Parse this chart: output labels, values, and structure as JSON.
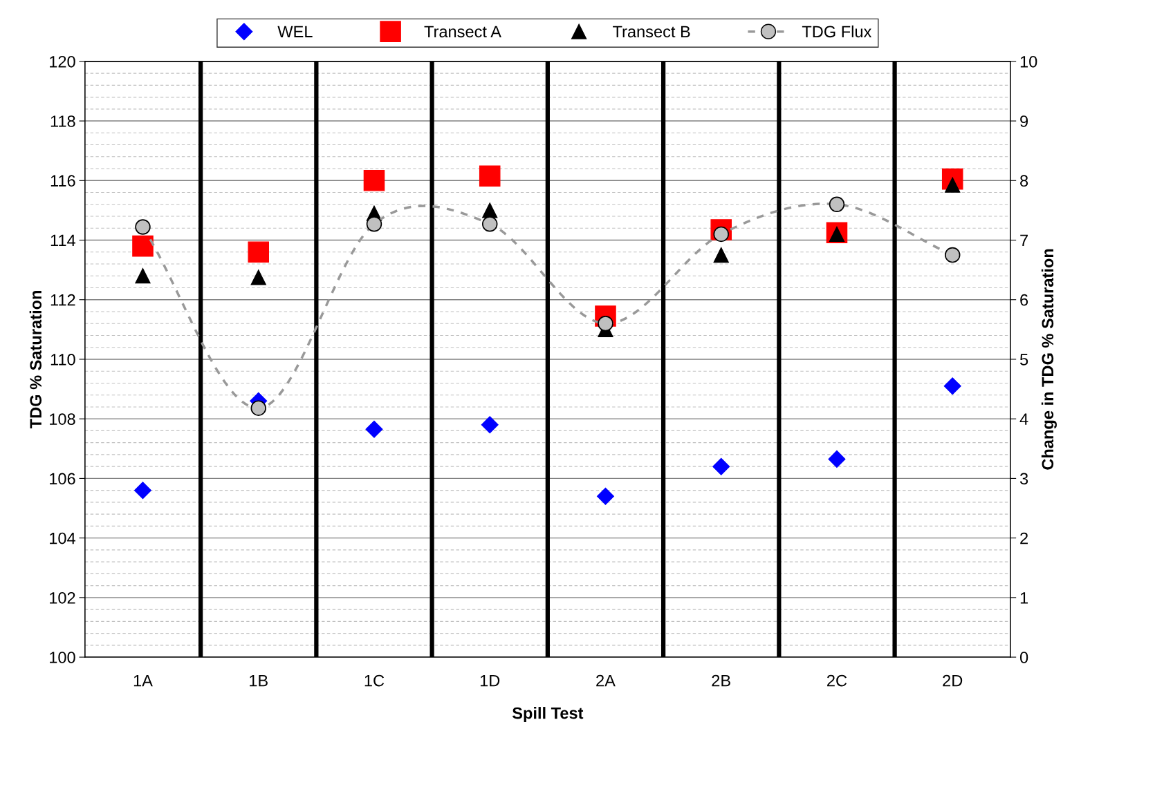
{
  "chart_data": {
    "type": "scatter",
    "xlabel": "Spill Test",
    "ylabel": "TDG % Saturation",
    "y2label": "Change in TDG % Saturation",
    "categories": [
      "1A",
      "1B",
      "1C",
      "1D",
      "2A",
      "2B",
      "2C",
      "2D"
    ],
    "series": [
      {
        "name": "WEL",
        "color": "#0000ff",
        "marker": "diamond",
        "values": [
          105.6,
          108.6,
          107.65,
          107.8,
          105.4,
          106.4,
          106.65,
          109.1
        ]
      },
      {
        "name": "Transect A",
        "color": "#ff0000",
        "marker": "square",
        "values": [
          113.8,
          113.6,
          116.0,
          116.15,
          111.45,
          114.35,
          114.25,
          116.05
        ]
      },
      {
        "name": "Transect B",
        "color": "#000000",
        "marker": "triangle",
        "values": [
          112.8,
          112.75,
          114.9,
          115.0,
          111.0,
          113.5,
          114.2,
          115.85
        ]
      },
      {
        "name": "TDG Flux",
        "type": "line",
        "axis": "y2",
        "color": "#c0c0c0",
        "marker": "circle",
        "line_style": "dashed",
        "values": [
          7.22,
          4.18,
          7.27,
          7.27,
          5.6,
          7.1,
          7.6,
          6.75
        ]
      }
    ],
    "ylim": [
      100,
      120
    ],
    "yticks": [
      100,
      102,
      104,
      106,
      108,
      110,
      112,
      114,
      116,
      118,
      120
    ],
    "y2lim": [
      0,
      10
    ],
    "y2ticks": [
      0,
      1,
      2,
      3,
      4,
      5,
      6,
      7,
      8,
      9,
      10
    ],
    "grid": true,
    "legend": "top"
  }
}
